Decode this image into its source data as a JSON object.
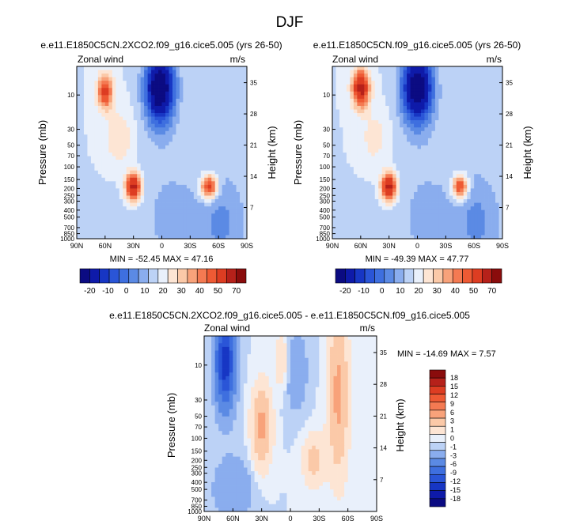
{
  "page_title": "DJF",
  "palettes": {
    "full": [
      "#0b0b82",
      "#0e1aa9",
      "#1736c4",
      "#2a55d7",
      "#3e6fdf",
      "#5b8ae4",
      "#8aadee",
      "#bcd2f6",
      "#e9f0fb",
      "#fde5d4",
      "#fbc9a8",
      "#f8a27a",
      "#f47a52",
      "#ee5a34",
      "#dd3d22",
      "#b6211a",
      "#8a0c0c"
    ],
    "diff": [
      "#0b0b82",
      "#0e1aa9",
      "#1736c4",
      "#2a55d7",
      "#3e6fdf",
      "#5b8ae4",
      "#8aadee",
      "#bcd2f6",
      "#e9f0fb",
      "#fde5d4",
      "#fbc9a8",
      "#f8a27a",
      "#f47a52",
      "#ee5a34",
      "#dd3d22",
      "#b6211a",
      "#8a0c0c"
    ]
  },
  "chart_data": [
    {
      "id": "p1",
      "type": "heatmap",
      "title": "e.e11.E1850C5CN.2XCO2.f09_g16.cice5.005 (yrs 26-50)",
      "left_label": "Zonal wind",
      "units_label": "m/s",
      "ylabel": "Pressure (mb)",
      "y2label": "Height (km)",
      "x_ticks": [
        "90N",
        "60N",
        "30N",
        "0",
        "30S",
        "60S",
        "90S"
      ],
      "x_tick_values": [
        90,
        60,
        30,
        0,
        -30,
        -60,
        -90
      ],
      "y_ticks": [
        "10",
        "30",
        "50",
        "70",
        "100",
        "150",
        "200",
        "250",
        "300",
        "400",
        "500",
        "700",
        "850",
        "1000"
      ],
      "y_tick_values": [
        10,
        30,
        50,
        70,
        100,
        150,
        200,
        250,
        300,
        400,
        500,
        700,
        850,
        1000
      ],
      "y2_ticks": [
        "35",
        "28",
        "21",
        "14",
        "7"
      ],
      "y2_tick_values": [
        35,
        28,
        21,
        14,
        7
      ],
      "ylim": [
        1000,
        4
      ],
      "xlim": [
        90,
        -90
      ],
      "stats": "MIN = -52.45  MAX = 47.16",
      "min": -52.45,
      "max": 47.16,
      "colorbar_ticks": [
        "-20",
        "-10",
        "0",
        "10",
        "20",
        "30",
        "40",
        "50",
        "70"
      ],
      "features": [
        {
          "lat": 60,
          "p": 9,
          "lw": 8,
          "lp": 0.55,
          "amp": 34
        },
        {
          "lat": 30,
          "p": 190,
          "lw": 8,
          "lp": 0.45,
          "amp": 47
        },
        {
          "lat": -50,
          "p": 190,
          "lw": 9,
          "lp": 0.38,
          "amp": 38
        },
        {
          "lat": 2,
          "p": 8,
          "lw": 15,
          "lp": 1.1,
          "amp": -52
        },
        {
          "lat": -65,
          "p": 600,
          "lw": 25,
          "lp": 1.6,
          "amp": -10
        },
        {
          "lat": -10,
          "p": 500,
          "lw": 45,
          "lp": 2.5,
          "amp": -6
        },
        {
          "lat": 45,
          "p": 40,
          "lw": 15,
          "lp": 0.9,
          "amp": 10
        }
      ]
    },
    {
      "id": "p2",
      "type": "heatmap",
      "title": "e.e11.E1850C5CN.f09_g16.cice5.005 (yrs 26-50)",
      "left_label": "Zonal wind",
      "units_label": "m/s",
      "ylabel": "Pressure (mb)",
      "y2label": "Height (km)",
      "x_ticks": [
        "90N",
        "60N",
        "30N",
        "0",
        "30S",
        "60S",
        "90S"
      ],
      "x_tick_values": [
        90,
        60,
        30,
        0,
        -30,
        -60,
        -90
      ],
      "y_ticks": [
        "10",
        "30",
        "50",
        "70",
        "100",
        "150",
        "200",
        "250",
        "300",
        "400",
        "500",
        "700",
        "850",
        "1000"
      ],
      "y_tick_values": [
        10,
        30,
        50,
        70,
        100,
        150,
        200,
        250,
        300,
        400,
        500,
        700,
        850,
        1000
      ],
      "y2_ticks": [
        "35",
        "28",
        "21",
        "14",
        "7"
      ],
      "y2_tick_values": [
        35,
        28,
        21,
        14,
        7
      ],
      "ylim": [
        1000,
        4
      ],
      "xlim": [
        90,
        -90
      ],
      "stats": "MIN = -49.39  MAX = 47.77",
      "min": -49.39,
      "max": 47.77,
      "colorbar_ticks": [
        "-20",
        "-10",
        "0",
        "10",
        "20",
        "30",
        "40",
        "50",
        "70"
      ],
      "features": [
        {
          "lat": 60,
          "p": 8,
          "lw": 9,
          "lp": 0.6,
          "amp": 45
        },
        {
          "lat": 30,
          "p": 190,
          "lw": 8,
          "lp": 0.45,
          "amp": 47
        },
        {
          "lat": -45,
          "p": 190,
          "lw": 8,
          "lp": 0.38,
          "amp": 36
        },
        {
          "lat": 0,
          "p": 8,
          "lw": 16,
          "lp": 1.1,
          "amp": -49
        },
        {
          "lat": -65,
          "p": 600,
          "lw": 25,
          "lp": 1.6,
          "amp": -10
        },
        {
          "lat": -10,
          "p": 500,
          "lw": 45,
          "lp": 2.5,
          "amp": -6
        },
        {
          "lat": 45,
          "p": 40,
          "lw": 15,
          "lp": 0.9,
          "amp": 8
        }
      ]
    },
    {
      "id": "p3",
      "type": "heatmap",
      "title": "e.e11.E1850C5CN.2XCO2.f09_g16.cice5.005 - e.e11.E1850C5CN.f09_g16.cice5.005",
      "left_label": "Zonal wind",
      "units_label": "m/s",
      "ylabel": "Pressure (mb)",
      "y2label": "Height (km)",
      "x_ticks": [
        "90N",
        "60N",
        "30N",
        "0",
        "30S",
        "60S",
        "90S"
      ],
      "x_tick_values": [
        90,
        60,
        30,
        0,
        -30,
        -60,
        -90
      ],
      "y_ticks": [
        "10",
        "30",
        "50",
        "70",
        "100",
        "150",
        "200",
        "250",
        "300",
        "400",
        "500",
        "700",
        "850",
        "1000"
      ],
      "y_tick_values": [
        10,
        30,
        50,
        70,
        100,
        150,
        200,
        250,
        300,
        400,
        500,
        700,
        850,
        1000
      ],
      "y2_ticks": [
        "35",
        "28",
        "21",
        "14",
        "7"
      ],
      "y2_tick_values": [
        35,
        28,
        21,
        14,
        7
      ],
      "ylim": [
        1000,
        4
      ],
      "xlim": [
        90,
        -90
      ],
      "stats": "MIN = -14.69  MAX =   7.57",
      "min": -14.69,
      "max": 7.57,
      "colorbar_ticks": [
        "18",
        "15",
        "12",
        "9",
        "6",
        "3",
        "1",
        "0",
        "-1",
        "-3",
        "-6",
        "-9",
        "-12",
        "-15",
        "-18"
      ],
      "features": [
        {
          "lat": 68,
          "p": 9,
          "lw": 10,
          "lp": 1.4,
          "amp": -14
        },
        {
          "lat": 30,
          "p": 70,
          "lw": 10,
          "lp": 1.2,
          "amp": 7
        },
        {
          "lat": -50,
          "p": 25,
          "lw": 10,
          "lp": 2.4,
          "amp": 7
        },
        {
          "lat": -25,
          "p": 200,
          "lw": 12,
          "lp": 0.8,
          "amp": 4
        },
        {
          "lat": 8,
          "p": 9,
          "lw": 8,
          "lp": 0.9,
          "amp": 3
        },
        {
          "lat": -5,
          "p": 12,
          "lw": 12,
          "lp": 1.2,
          "amp": -3
        },
        {
          "lat": 60,
          "p": 500,
          "lw": 20,
          "lp": 1.0,
          "amp": -3
        }
      ]
    }
  ]
}
